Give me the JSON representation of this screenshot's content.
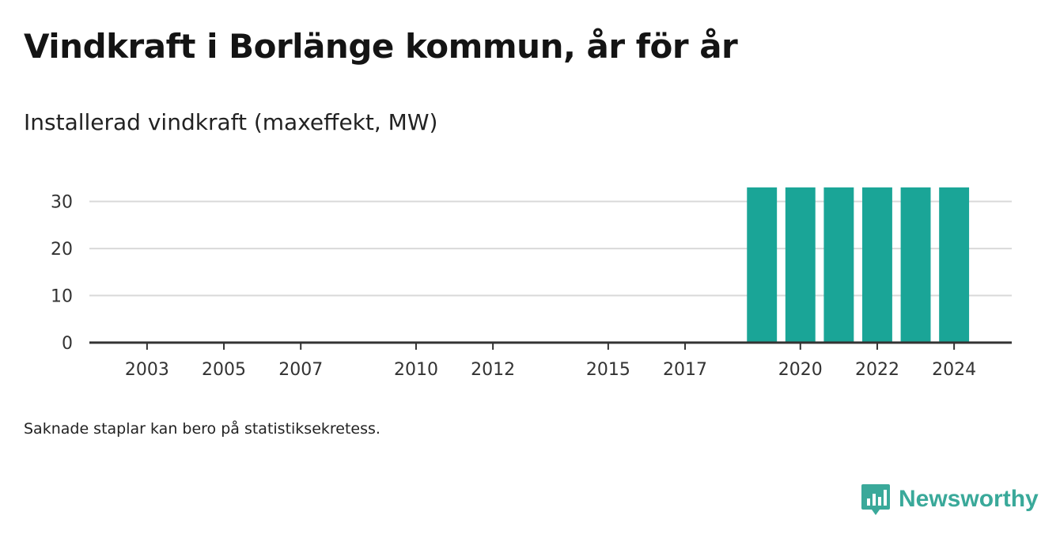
{
  "title": "Vindkraft i Borlänge kommun, år för år",
  "subtitle": "Installerad vindkraft (maxeffekt, MW)",
  "note": "Saknade staplar kan bero på statistiksekretess.",
  "brand": {
    "name": "Newsworthy",
    "icon": "bar-chart-speech-bubble-icon"
  },
  "colors": {
    "bar": "#1aa597",
    "grid": "#d9d9d9",
    "axis": "#333333",
    "brand": "#3aa99a"
  },
  "chart_data": {
    "type": "bar",
    "x_range": [
      2001.5,
      2025.5
    ],
    "ylim": [
      0,
      36
    ],
    "yticks": [
      0,
      10,
      20,
      30
    ],
    "xticks": [
      2003,
      2005,
      2007,
      2010,
      2012,
      2015,
      2017,
      2020,
      2022,
      2024
    ],
    "categories": [
      2019,
      2020,
      2021,
      2022,
      2023,
      2024
    ],
    "values": [
      33,
      33,
      33,
      33,
      33,
      33
    ],
    "grid": true,
    "legend": "none"
  }
}
